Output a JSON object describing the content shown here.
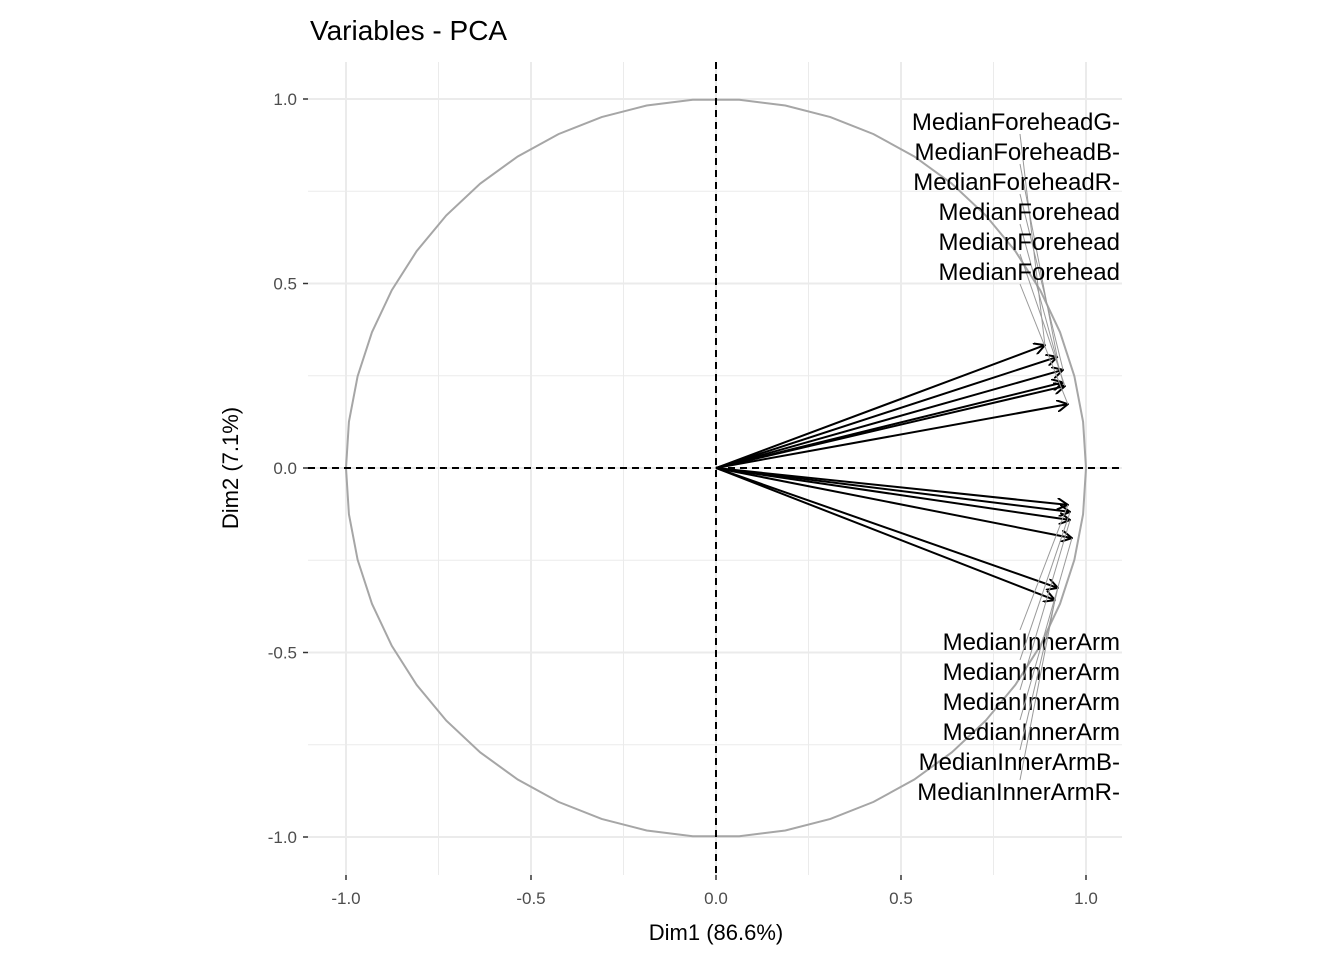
{
  "chart_data": {
    "type": "scatter",
    "subtype": "pca-variable-correlation-circle",
    "title": "Variables - PCA",
    "xlabel": "Dim1 (86.6%)",
    "ylabel": "Dim2 (7.1%)",
    "xlim": [
      -1.1,
      1.1
    ],
    "ylim": [
      -1.1,
      1.1
    ],
    "x_ticks": [
      -1.0,
      -0.5,
      0.0,
      0.5,
      1.0
    ],
    "x_tick_labels": [
      "-1.0",
      "-0.5",
      "0.0",
      "0.5",
      "1.0"
    ],
    "y_ticks": [
      -1.0,
      -0.5,
      0.0,
      0.5,
      1.0
    ],
    "y_tick_labels": [
      "-1.0",
      "-0.5",
      "0.0",
      "0.5",
      "1.0"
    ],
    "grid": true,
    "circle_radius": 1.0,
    "variables": [
      {
        "label": "MedianForeheadG-",
        "x": 0.889,
        "y": 0.333
      },
      {
        "label": "MedianForeheadB-",
        "x": 0.922,
        "y": 0.301
      },
      {
        "label": "MedianForeheadR-",
        "x": 0.938,
        "y": 0.266
      },
      {
        "label": "MedianForehead",
        "x": 0.938,
        "y": 0.232
      },
      {
        "label": "MedianForehead",
        "x": 0.943,
        "y": 0.222
      },
      {
        "label": "MedianForehead",
        "x": 0.951,
        "y": 0.173
      },
      {
        "label": "MedianInnerArm",
        "x": 0.951,
        "y": -0.1
      },
      {
        "label": "MedianInnerArm",
        "x": 0.957,
        "y": -0.119
      },
      {
        "label": "MedianInnerArm",
        "x": 0.957,
        "y": -0.141
      },
      {
        "label": "MedianInnerArm",
        "x": 0.962,
        "y": -0.19
      },
      {
        "label": "MedianInnerArmB-",
        "x": 0.924,
        "y": -0.325
      },
      {
        "label": "MedianInnerArmR-",
        "x": 0.916,
        "y": -0.358
      }
    ],
    "colors": {
      "arrow": "#000000",
      "circle": "#a6a6a6",
      "grid": "#ebebeb"
    }
  }
}
